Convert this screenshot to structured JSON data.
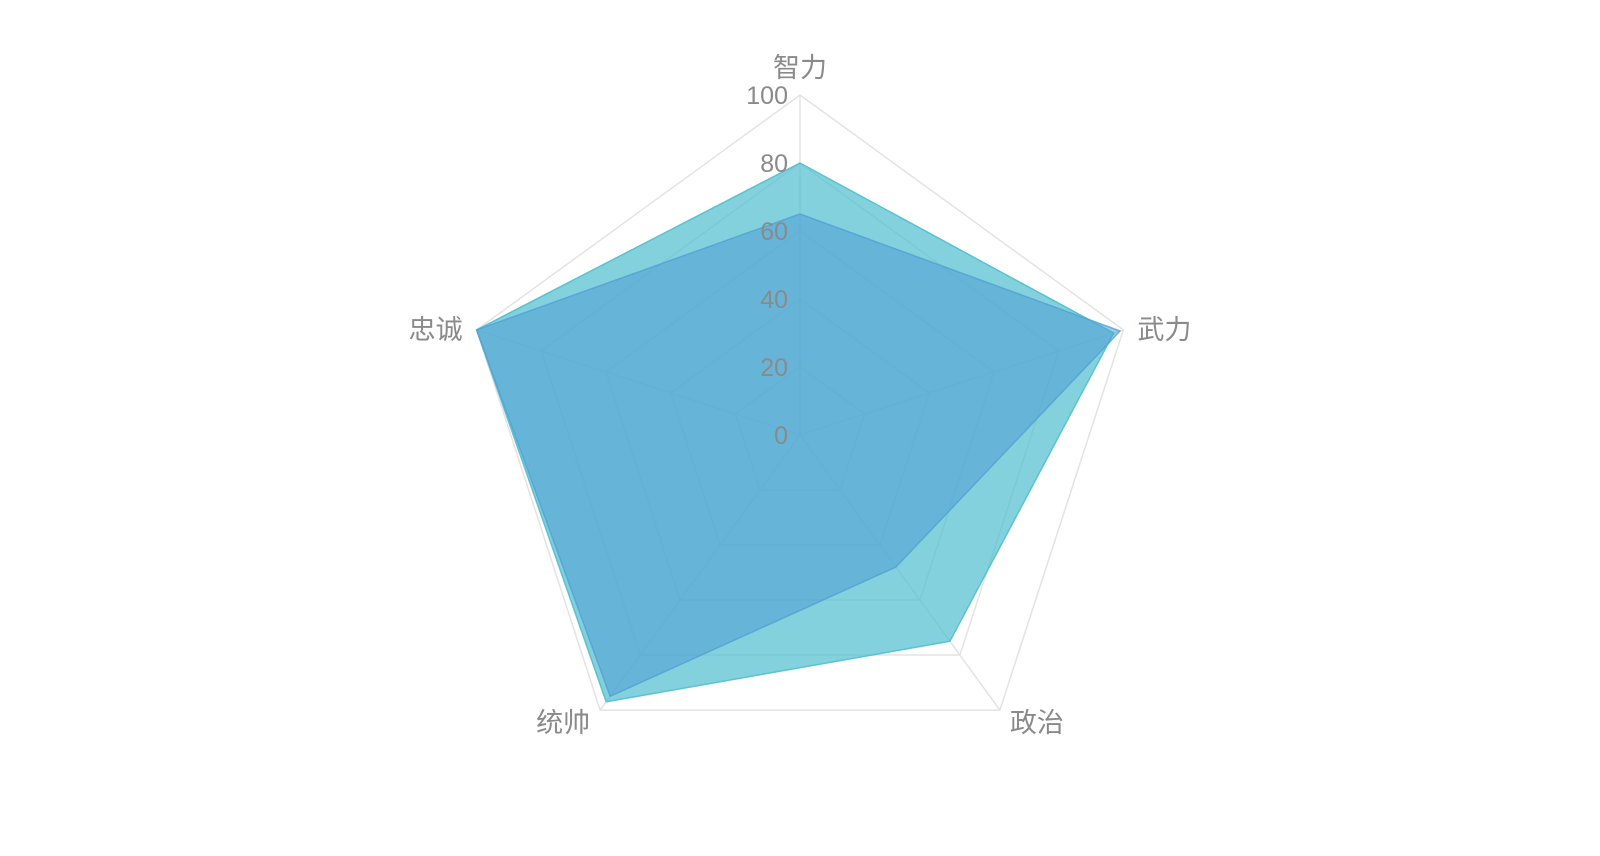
{
  "chart_data": {
    "type": "radar",
    "title": "",
    "indicators": [
      "智力",
      "武力",
      "政治",
      "统帅",
      "忠诚"
    ],
    "max": 100,
    "rlim": [
      0,
      100
    ],
    "ticks": [
      "0",
      "20",
      "40",
      "60",
      "80",
      "100"
    ],
    "grid": true,
    "legend": "none",
    "series": [
      {
        "values": [
          80,
          97,
          75,
          97,
          100
        ],
        "color": "#53bfcf",
        "opacity": 0.72
      },
      {
        "values": [
          65,
          99,
          48,
          95,
          100
        ],
        "color": "#4f9fd6",
        "opacity": 0.55
      }
    ]
  }
}
